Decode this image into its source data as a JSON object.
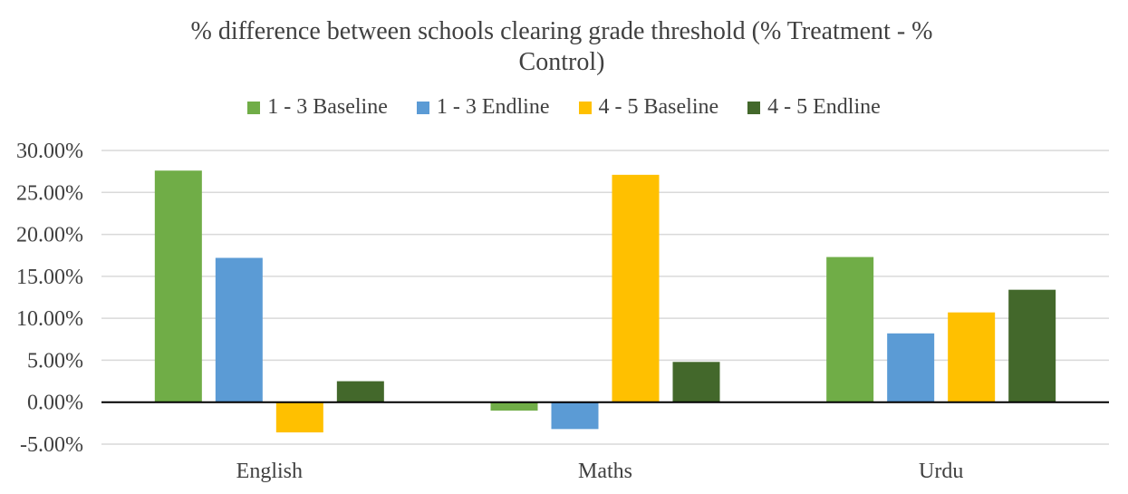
{
  "chart_data": {
    "type": "bar",
    "title": "% difference between schools clearing grade threshold (% Treatment - % Control)",
    "xlabel": "",
    "ylabel": "",
    "categories": [
      "English",
      "Maths",
      "Urdu"
    ],
    "series": [
      {
        "name": "1 - 3 Baseline",
        "color": "#70AD47",
        "values": [
          27.6,
          -1.0,
          17.3
        ]
      },
      {
        "name": "1 - 3 Endline",
        "color": "#5B9BD5",
        "values": [
          17.2,
          -3.2,
          8.2
        ]
      },
      {
        "name": "4 - 5 Baseline",
        "color": "#FFC000",
        "values": [
          -3.6,
          27.1,
          10.7
        ]
      },
      {
        "name": "4 - 5 Endline",
        "color": "#43682B",
        "values": [
          2.5,
          4.8,
          13.4
        ]
      }
    ],
    "ylim": [
      -5,
      30
    ],
    "yticks": [
      "-5.00%",
      "0.00%",
      "5.00%",
      "10.00%",
      "15.00%",
      "20.00%",
      "25.00%",
      "30.00%"
    ],
    "ytick_values": [
      -5,
      0,
      5,
      10,
      15,
      20,
      25,
      30
    ],
    "grid": true,
    "legend_position": "top"
  }
}
